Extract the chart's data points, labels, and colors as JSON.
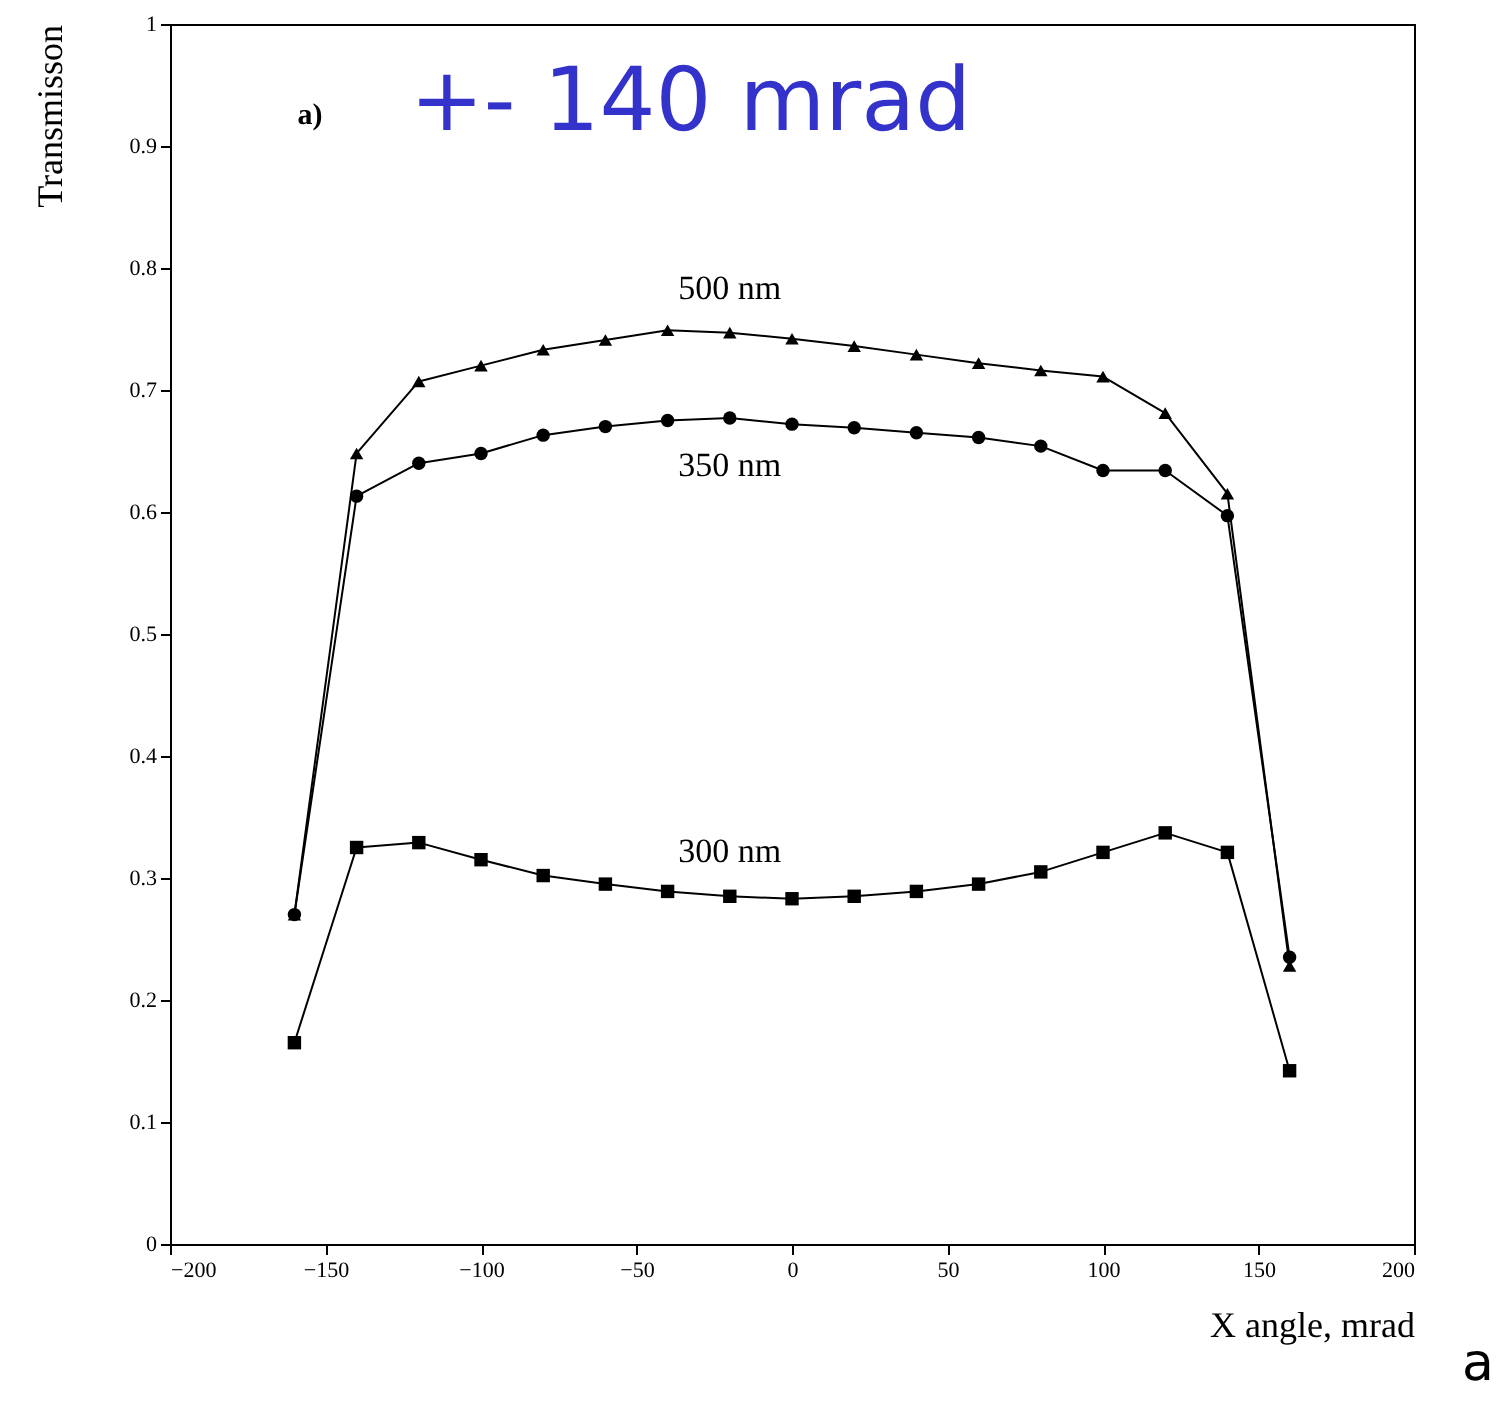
{
  "chart_data": {
    "type": "line",
    "xlabel": "X angle, mrad",
    "ylabel": "Transmisson",
    "annotations": [
      "a)",
      "+- 140 mrad",
      "a"
    ],
    "x": [
      -160,
      -140,
      -120,
      -100,
      -80,
      -60,
      -40,
      -20,
      0,
      20,
      40,
      60,
      80,
      100,
      120,
      140,
      160
    ],
    "series": [
      {
        "name": "500 nm",
        "color": "#000000",
        "marker": "triangle",
        "values": [
          0.27,
          0.648,
          0.707,
          0.72,
          0.733,
          0.741,
          0.749,
          0.747,
          0.742,
          0.736,
          0.729,
          0.722,
          0.716,
          0.711,
          0.681,
          0.615,
          0.228
        ]
      },
      {
        "name": "350 nm",
        "color": "#000000",
        "marker": "circle",
        "values": [
          0.27,
          0.613,
          0.64,
          0.648,
          0.663,
          0.67,
          0.675,
          0.677,
          0.672,
          0.669,
          0.665,
          0.661,
          0.654,
          0.634,
          0.634,
          0.597,
          0.235
        ]
      },
      {
        "name": "300 nm",
        "color": "#000000",
        "marker": "square",
        "values": [
          0.165,
          0.325,
          0.329,
          0.315,
          0.302,
          0.295,
          0.289,
          0.285,
          0.283,
          0.285,
          0.289,
          0.295,
          0.305,
          0.321,
          0.337,
          0.321,
          0.142
        ]
      }
    ],
    "xlim": [
      -200,
      200
    ],
    "xticks": [
      -200,
      -150,
      -100,
      -50,
      0,
      50,
      100,
      150,
      200
    ],
    "ylim": [
      0,
      1
    ],
    "yticks": [
      0,
      0.1,
      0.2,
      0.3,
      0.4,
      0.5,
      0.6,
      0.7,
      0.8,
      0.9,
      1
    ],
    "line_style": "solid"
  }
}
